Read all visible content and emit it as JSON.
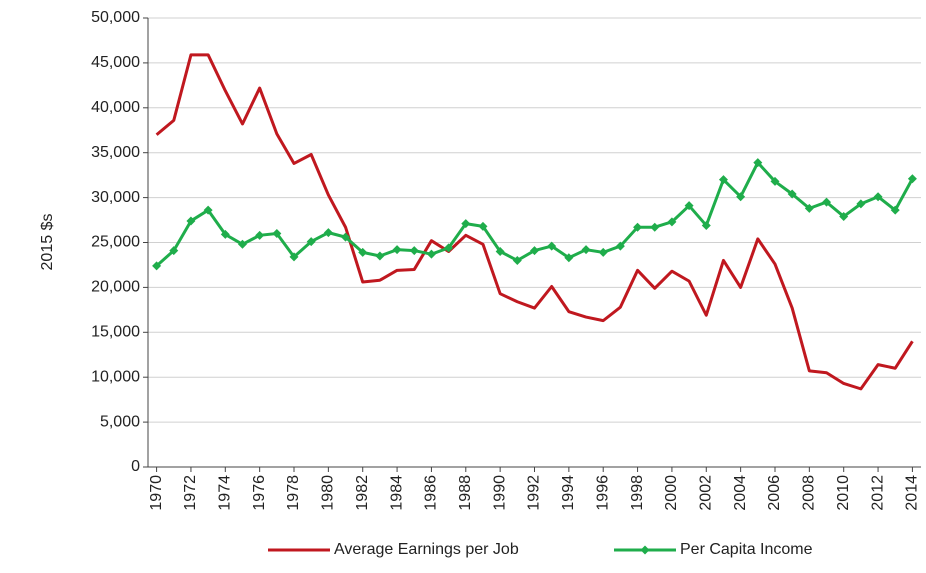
{
  "chart_data": {
    "type": "line",
    "y_label": "2015 $s",
    "x": [
      1970,
      1971,
      1972,
      1973,
      1974,
      1975,
      1976,
      1977,
      1978,
      1979,
      1980,
      1981,
      1982,
      1983,
      1984,
      1985,
      1986,
      1987,
      1988,
      1989,
      1990,
      1991,
      1992,
      1993,
      1994,
      1995,
      1996,
      1997,
      1998,
      1999,
      2000,
      2001,
      2002,
      2003,
      2004,
      2005,
      2006,
      2007,
      2008,
      2009,
      2010,
      2011,
      2012,
      2013,
      2014
    ],
    "xlim": [
      1969.5,
      2014.5
    ],
    "xticks": [
      1970,
      1972,
      1974,
      1976,
      1978,
      1980,
      1982,
      1984,
      1986,
      1988,
      1990,
      1992,
      1994,
      1996,
      1998,
      2000,
      2002,
      2004,
      2006,
      2008,
      2010,
      2012,
      2014
    ],
    "ylim": [
      0,
      50000
    ],
    "yticks": [
      0,
      {
        "value": 5000,
        "label": "5,000"
      },
      {
        "value": 10000,
        "label": "10,000"
      },
      {
        "value": 15000,
        "label": "15,000"
      },
      {
        "value": 20000,
        "label": "20,000"
      },
      {
        "value": 25000,
        "label": "25,000"
      },
      {
        "value": 30000,
        "label": "30,000"
      },
      {
        "value": 35000,
        "label": "35,000"
      },
      {
        "value": 40000,
        "label": "40,000"
      },
      {
        "value": 45000,
        "label": "45,000"
      },
      {
        "value": 50000,
        "label": "50,000"
      }
    ],
    "grid": true,
    "legend": "bottom",
    "series": [
      {
        "name": "Average Earnings per Job",
        "color": "#c0181f",
        "marker": "none",
        "values": [
          37000,
          38600,
          45900,
          45900,
          41900,
          38200,
          42200,
          37100,
          33800,
          34800,
          30300,
          26700,
          20600,
          20800,
          21900,
          22000,
          25200,
          24000,
          25800,
          24800,
          19300,
          18400,
          17700,
          20100,
          17300,
          16700,
          16300,
          17800,
          21900,
          19900,
          21800,
          20700,
          16900,
          23000,
          20000,
          25400,
          22600,
          17700,
          10700,
          10500,
          9300,
          8700,
          11400,
          11000,
          14000
        ]
      },
      {
        "name": "Per Capita Income",
        "color": "#1fad4b",
        "marker": "diamond",
        "values": [
          22400,
          24100,
          27400,
          28600,
          25900,
          24800,
          25800,
          26000,
          23400,
          25100,
          26100,
          25600,
          23900,
          23500,
          24200,
          24100,
          23700,
          24400,
          27100,
          26800,
          24000,
          23000,
          24100,
          24600,
          23300,
          24200,
          23900,
          24600,
          26700,
          26700,
          27300,
          29100,
          26900,
          32000,
          30100,
          33900,
          31800,
          30400,
          28800,
          29500,
          27900,
          29300,
          30100,
          28600,
          32100
        ]
      }
    ]
  }
}
